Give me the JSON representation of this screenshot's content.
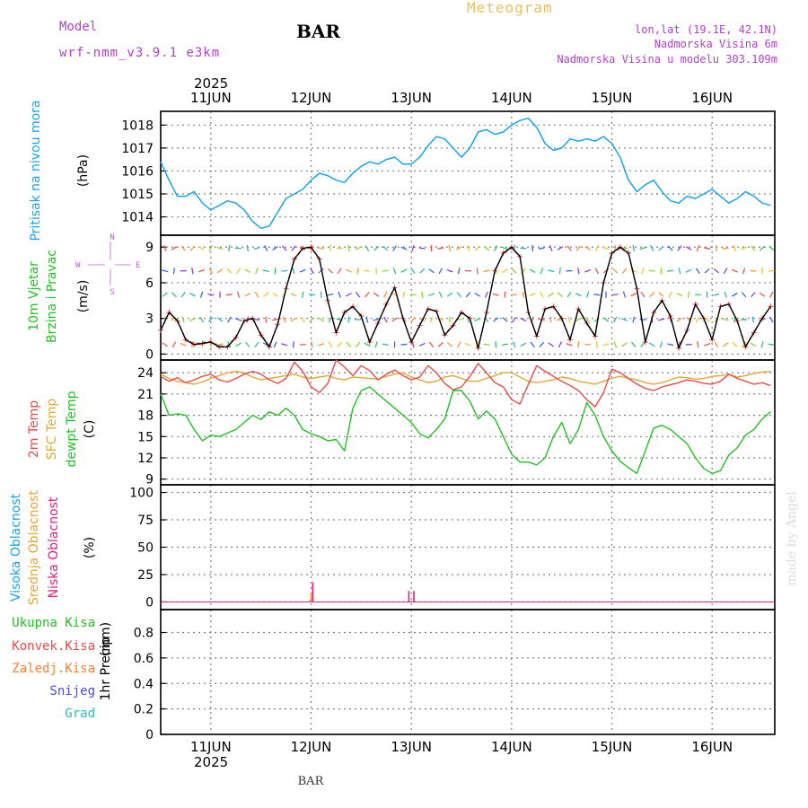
{
  "header": {
    "model_label": "Model",
    "model_name": "wrf-nmm_v3.9.1  e3km",
    "station": "BAR",
    "title": "Meteogram",
    "lonlat": "lon,lat (19.1E, 42.1N)",
    "elevation": "Nadmorska Visina 6m",
    "model_elevation": "Nadmorska Visina u modelu 303.109m",
    "footer_station": "BAR",
    "watermark": "made by Angel"
  },
  "colors": {
    "pressure": "#1aa3e8",
    "wind_title": "#22c022",
    "temp2m": "#e84a4a",
    "sfc_temp": "#e0a83a",
    "dewpt": "#22c022",
    "high_cloud": "#1aa3e8",
    "mid_cloud": "#e0a83a",
    "low_cloud": "#e0207a",
    "total_precip": "#22c022",
    "conv_precip": "#e84a4a",
    "frz_precip": "#ff7f2a",
    "snow": "#4a4ae8",
    "hail": "#22c0c0",
    "model_label": "#b040d0",
    "meteogram_title": "#e8c060",
    "axis": "#000000",
    "grid": "#808080",
    "compass": "#c060d0"
  },
  "time_axis": {
    "year": "2025",
    "dates": [
      "11JUN",
      "12JUN",
      "13JUN",
      "14JUN",
      "15JUN",
      "16JUN"
    ],
    "date_positions_hours": [
      12,
      36,
      60,
      84,
      108,
      132
    ],
    "range_hours": [
      0,
      147
    ]
  },
  "chart_data": [
    {
      "id": "pressure",
      "type": "line",
      "title": "Pritisak na nivou mora",
      "ylabel": "(hPa)",
      "ylim": [
        1013.2,
        1018.6
      ],
      "yticks": [
        1014,
        1015,
        1016,
        1017,
        1018
      ],
      "series": [
        {
          "name": "Pritisak na nivou mora",
          "x": [
            0,
            2,
            4,
            6,
            8,
            10,
            12,
            14,
            16,
            18,
            20,
            22,
            24,
            26,
            28,
            30,
            32,
            34,
            36,
            38,
            40,
            42,
            44,
            46,
            48,
            50,
            52,
            54,
            56,
            58,
            60,
            62,
            64,
            66,
            68,
            70,
            72,
            74,
            76,
            78,
            80,
            82,
            84,
            86,
            88,
            90,
            92,
            94,
            96,
            98,
            100,
            102,
            104,
            106,
            108,
            110,
            112,
            114,
            116,
            118,
            120,
            122,
            124,
            126,
            128,
            130,
            132,
            134,
            136,
            138,
            140,
            142,
            144,
            146
          ],
          "values": [
            1016.4,
            1015.6,
            1014.9,
            1014.9,
            1015.1,
            1014.6,
            1014.3,
            1014.5,
            1014.7,
            1014.6,
            1014.3,
            1013.8,
            1013.5,
            1013.6,
            1014.2,
            1014.8,
            1015.0,
            1015.2,
            1015.6,
            1015.9,
            1015.8,
            1015.6,
            1015.5,
            1015.9,
            1016.2,
            1016.4,
            1016.3,
            1016.5,
            1016.6,
            1016.3,
            1016.3,
            1016.6,
            1017.1,
            1017.5,
            1017.4,
            1017.0,
            1016.6,
            1017.0,
            1017.7,
            1017.8,
            1017.6,
            1017.7,
            1018.0,
            1018.2,
            1018.3,
            1017.9,
            1017.2,
            1016.9,
            1017.0,
            1017.4,
            1017.3,
            1017.4,
            1017.3,
            1017.5,
            1017.2,
            1016.6,
            1015.6,
            1015.1,
            1015.4,
            1015.6,
            1015.1,
            1014.7,
            1014.6,
            1014.9,
            1014.8,
            1015.0,
            1015.2,
            1014.9,
            1014.6,
            1014.8,
            1015.1,
            1014.9,
            1014.6,
            1014.5
          ]
        }
      ]
    },
    {
      "id": "wind",
      "type": "line",
      "title": "10m Vjetar",
      "subtitle": "Brzina i Pravac",
      "ylabel": "(m/s)",
      "ylim": [
        -0.5,
        10
      ],
      "yticks": [
        0,
        3,
        6,
        9
      ],
      "compass": {
        "north": "N",
        "south": "S",
        "west": "W",
        "east": "E"
      },
      "series": [
        {
          "name": "Brzina vjetra",
          "x": [
            0,
            2,
            4,
            6,
            8,
            10,
            12,
            14,
            16,
            18,
            20,
            22,
            24,
            26,
            28,
            30,
            32,
            34,
            36,
            38,
            40,
            42,
            44,
            46,
            48,
            50,
            52,
            54,
            56,
            58,
            60,
            62,
            64,
            66,
            68,
            70,
            72,
            74,
            76,
            78,
            80,
            82,
            84,
            86,
            88,
            90,
            92,
            94,
            96,
            98,
            100,
            102,
            104,
            106,
            108,
            110,
            112,
            114,
            116,
            118,
            120,
            122,
            124,
            126,
            128,
            130,
            132,
            134,
            136,
            138,
            140,
            142,
            144,
            146
          ],
          "values": [
            2.0,
            3.5,
            2.8,
            1.2,
            0.8,
            0.9,
            1.0,
            0.6,
            0.6,
            1.4,
            2.8,
            3.0,
            1.6,
            0.6,
            2.5,
            5.5,
            8.0,
            8.9,
            9.0,
            8.0,
            4.5,
            1.8,
            3.5,
            4.0,
            3.2,
            1.0,
            2.6,
            4.2,
            5.6,
            3.0,
            1.0,
            2.4,
            3.8,
            3.6,
            1.6,
            2.4,
            3.5,
            3.0,
            0.5,
            3.5,
            7.0,
            8.5,
            9.0,
            8.2,
            3.5,
            1.5,
            3.8,
            4.0,
            3.0,
            1.2,
            3.8,
            2.6,
            1.5,
            6.0,
            8.5,
            9.0,
            8.5,
            5.5,
            1.0,
            3.5,
            4.5,
            3.2,
            0.5,
            2.0,
            4.2,
            3.0,
            1.2,
            4.0,
            4.2,
            2.8,
            0.6,
            1.8,
            3.0,
            4.0
          ]
        }
      ]
    },
    {
      "id": "temperature",
      "type": "line",
      "titles": [
        "2m Temp",
        "SFC Temp",
        "dewpt Temp"
      ],
      "ylabel": "(C)",
      "ylim": [
        8.2,
        25.8
      ],
      "yticks": [
        9,
        12,
        15,
        18,
        21,
        24
      ],
      "x": [
        0,
        2,
        4,
        6,
        8,
        10,
        12,
        14,
        16,
        18,
        20,
        22,
        24,
        26,
        28,
        30,
        32,
        34,
        36,
        38,
        40,
        42,
        44,
        46,
        48,
        50,
        52,
        54,
        56,
        58,
        60,
        62,
        64,
        66,
        68,
        70,
        72,
        74,
        76,
        78,
        80,
        82,
        84,
        86,
        88,
        90,
        92,
        94,
        96,
        98,
        100,
        102,
        104,
        106,
        108,
        110,
        112,
        114,
        116,
        118,
        120,
        122,
        124,
        126,
        128,
        130,
        132,
        134,
        136,
        138,
        140,
        142,
        144,
        146
      ],
      "series": [
        {
          "name": "2m Temp",
          "values": [
            23.5,
            22.8,
            23.3,
            22.6,
            23.0,
            23.5,
            23.8,
            23.0,
            22.7,
            23.2,
            23.8,
            24.2,
            23.8,
            23.0,
            22.5,
            23.2,
            25.5,
            24.2,
            22.0,
            21.2,
            22.5,
            25.8,
            24.8,
            23.6,
            25.0,
            24.3,
            23.0,
            23.8,
            24.4,
            23.6,
            23.0,
            23.4,
            25.0,
            24.0,
            22.5,
            21.6,
            22.0,
            23.5,
            25.3,
            24.0,
            22.6,
            22.0,
            20.2,
            19.6,
            22.4,
            25.0,
            24.2,
            23.5,
            22.8,
            22.2,
            21.5,
            20.2,
            19.2,
            21.2,
            24.5,
            24.0,
            23.2,
            22.4,
            21.8,
            21.5,
            22.0,
            22.3,
            22.6,
            23.0,
            22.8,
            22.5,
            22.4,
            22.8,
            23.8,
            23.2,
            22.8,
            22.4,
            22.6,
            22.2
          ]
        },
        {
          "name": "SFC Temp",
          "values": [
            23.8,
            23.2,
            22.8,
            22.6,
            22.4,
            22.7,
            23.2,
            23.6,
            24.0,
            24.2,
            24.0,
            23.4,
            23.0,
            23.2,
            23.4,
            23.6,
            23.8,
            23.4,
            23.2,
            23.4,
            23.6,
            23.2,
            23.0,
            23.4,
            23.3,
            23.2,
            23.1,
            23.5,
            23.8,
            24.0,
            23.4,
            23.0,
            22.6,
            22.8,
            23.4,
            23.6,
            23.2,
            22.8,
            22.8,
            23.2,
            23.6,
            24.0,
            24.0,
            23.4,
            22.8,
            22.6,
            22.8,
            23.0,
            23.4,
            23.2,
            22.8,
            22.6,
            22.4,
            22.8,
            23.2,
            23.5,
            23.2,
            23.0,
            22.6,
            22.4,
            22.6,
            23.0,
            23.4,
            23.3,
            23.1,
            23.2,
            23.5,
            23.6,
            23.8,
            23.4,
            23.6,
            23.9,
            24.1,
            24.2
          ]
        },
        {
          "name": "dewpt Temp",
          "values": [
            21.0,
            18.0,
            18.2,
            18.0,
            16.0,
            14.4,
            15.2,
            15.0,
            15.5,
            16.0,
            17.0,
            18.0,
            17.4,
            18.5,
            18.0,
            19.0,
            18.0,
            16.0,
            15.4,
            15.0,
            14.4,
            14.6,
            13.0,
            19.0,
            21.5,
            22.0,
            21.0,
            20.0,
            19.0,
            18.0,
            17.0,
            15.4,
            14.8,
            16.0,
            17.5,
            21.5,
            21.5,
            20.0,
            17.5,
            18.6,
            17.5,
            15.0,
            12.5,
            11.4,
            11.4,
            11.0,
            12.0,
            15.0,
            17.0,
            14.0,
            16.0,
            19.8,
            18.0,
            15.0,
            13.0,
            11.5,
            10.6,
            9.8,
            13.0,
            16.2,
            16.6,
            16.0,
            15.0,
            14.0,
            12.0,
            10.5,
            9.8,
            10.2,
            12.4,
            13.4,
            15.2,
            16.0,
            17.5,
            18.5
          ]
        }
      ]
    },
    {
      "id": "cloud",
      "type": "bar",
      "titles": [
        "Visoka Oblacnost",
        "Srednja Oblacnost",
        "Niska Oblacnost"
      ],
      "ylabel": "(%)",
      "ylim": [
        -7,
        107
      ],
      "yticks": [
        0,
        25,
        50,
        75,
        100
      ],
      "series": [
        {
          "name": "Visoka Oblacnost",
          "x": [
            35.8,
            60.0
          ],
          "values": [
            2,
            1
          ]
        },
        {
          "name": "Srednja Oblacnost",
          "x": [
            36.0
          ],
          "values": [
            8
          ]
        },
        {
          "name": "Niska Oblacnost",
          "x": [
            36.4,
            59.4,
            60.6
          ],
          "values": [
            18,
            10,
            10
          ]
        }
      ]
    },
    {
      "id": "precip",
      "type": "bar",
      "title": "1hr Precip",
      "ylabel": "(mm)",
      "legend": [
        "Ukupna Kisa",
        "Konvek.Kisa",
        "Zaledj.Kisa",
        "Snijeg",
        "Grad"
      ],
      "ylim": [
        0,
        0.98
      ],
      "yticks": [
        0,
        0.2,
        0.4,
        0.6,
        0.8
      ],
      "ytick_labels": [
        "0",
        "0.2",
        "0.4",
        "0.6",
        "0.8"
      ],
      "series": [
        {
          "name": "Ukupna Kisa",
          "values": [
            0
          ]
        },
        {
          "name": "Konvek.Kisa",
          "values": [
            0
          ]
        },
        {
          "name": "Zaledj.Kisa",
          "values": [
            0
          ]
        },
        {
          "name": "Snijeg",
          "values": [
            0
          ]
        },
        {
          "name": "Grad",
          "values": [
            0
          ]
        }
      ]
    }
  ]
}
